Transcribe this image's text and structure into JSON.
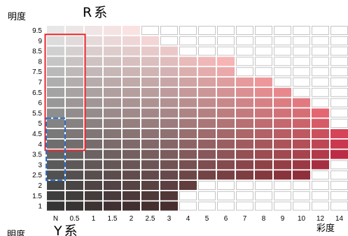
{
  "chart_data": {
    "type": "heatmap",
    "title": "R系",
    "ylabel": "明度",
    "xlabel": "彩度",
    "x_labels": [
      "N",
      "0.5",
      "1",
      "1.5",
      "2",
      "2.5",
      "3",
      "4",
      "5",
      "6",
      "7",
      "8",
      "9",
      "10",
      "12",
      "14"
    ],
    "y_labels": [
      "9.5",
      "9",
      "8.5",
      "8",
      "7.5",
      "7",
      "6.5",
      "6",
      "5.5",
      "5",
      "4.5",
      "4",
      "3.5",
      "3",
      "2.5",
      "2",
      "1.5",
      "1"
    ],
    "max_chroma": [
      2,
      2.5,
      3,
      6,
      6,
      8,
      9,
      10,
      12,
      12,
      14,
      14,
      14,
      12,
      10,
      4,
      3,
      3
    ],
    "highlights": [
      {
        "style": "solid",
        "color": "#e8252b",
        "chroma_range": [
          "N",
          "0.5"
        ],
        "value_range": [
          "9",
          "4"
        ]
      },
      {
        "style": "dashed",
        "color": "#2d6ec4",
        "chroma_range": [
          "N",
          "N"
        ],
        "value_range": [
          "5",
          "2.5"
        ]
      }
    ],
    "empty_cell_border": "#c4c4c4"
  },
  "next_chart": {
    "ylabel": "明度",
    "title": "Y系"
  }
}
